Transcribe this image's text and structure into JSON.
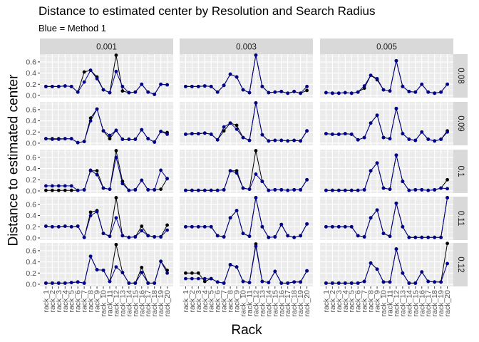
{
  "chart_data": {
    "type": "line",
    "title": "Distance to estimated center by Resolution and Search Radius",
    "subtitle": "Blue = Method 1",
    "xlabel": "Rack",
    "ylabel": "Distance to estimated center",
    "ylim": [
      0,
      0.7
    ],
    "y_ticks": [
      "0.0",
      "0.2",
      "0.4",
      "0.6"
    ],
    "categories": [
      "rack_1",
      "rack_2",
      "rack_3",
      "rack_4",
      "rack_5",
      "rack_6",
      "rack_7",
      "rack_8",
      "rack_9",
      "rack_10",
      "rack_11",
      "rack_12",
      "rack_13",
      "rack_14",
      "rack_15",
      "rack_16",
      "rack_17",
      "rack_18",
      "rack_19",
      "rack_20"
    ],
    "column_facets": [
      "0.001",
      "0.003",
      "0.005"
    ],
    "row_facets": [
      "0.08",
      "0.09",
      "0.1",
      "0.11",
      "0.12"
    ],
    "colors": {
      "black_series": "#000000",
      "blue_series": "#00008B",
      "panel_bg": "#EBEBEB",
      "strip_bg": "#D9D9D9",
      "grid": "#FFFFFF"
    },
    "panels": [
      [
        {
          "black": [
            0.16,
            0.16,
            0.16,
            0.17,
            0.16,
            0.06,
            0.42,
            0.45,
            0.33,
            0.1,
            0.05,
            0.72,
            0.08,
            0.05,
            0.06,
            0.2,
            0.06,
            0.02,
            0.2,
            0.19
          ],
          "blue": [
            0.16,
            0.16,
            0.16,
            0.17,
            0.16,
            0.06,
            0.24,
            0.45,
            0.3,
            0.1,
            0.05,
            0.43,
            0.16,
            0.05,
            0.06,
            0.2,
            0.06,
            0.02,
            0.2,
            0.19
          ]
        },
        {
          "black": [
            0.16,
            0.16,
            0.16,
            0.17,
            0.16,
            0.06,
            0.18,
            0.38,
            0.33,
            0.1,
            0.05,
            0.72,
            0.16,
            0.05,
            0.06,
            0.07,
            0.04,
            0.07,
            0.04,
            0.09
          ],
          "blue": [
            0.16,
            0.16,
            0.16,
            0.17,
            0.16,
            0.06,
            0.18,
            0.38,
            0.33,
            0.1,
            0.05,
            0.72,
            0.16,
            0.05,
            0.06,
            0.07,
            0.04,
            0.07,
            0.04,
            0.16
          ]
        },
        {
          "black": [
            0.05,
            0.04,
            0.04,
            0.05,
            0.04,
            0.06,
            0.13,
            0.36,
            0.28,
            0.1,
            0.08,
            0.62,
            0.16,
            0.07,
            0.06,
            0.2,
            0.06,
            0.04,
            0.06,
            0.2
          ],
          "blue": [
            0.05,
            0.04,
            0.04,
            0.05,
            0.04,
            0.06,
            0.17,
            0.36,
            0.3,
            0.1,
            0.08,
            0.62,
            0.16,
            0.07,
            0.06,
            0.2,
            0.06,
            0.04,
            0.06,
            0.2
          ]
        }
      ],
      [
        {
          "black": [
            0.08,
            0.08,
            0.08,
            0.08,
            0.08,
            0.01,
            0.03,
            0.45,
            0.61,
            0.22,
            0.08,
            0.23,
            0.07,
            0.07,
            0.07,
            0.24,
            0.08,
            0.02,
            0.21,
            0.19
          ],
          "blue": [
            0.08,
            0.07,
            0.07,
            0.08,
            0.08,
            0.01,
            0.03,
            0.4,
            0.61,
            0.22,
            0.14,
            0.23,
            0.07,
            0.07,
            0.07,
            0.24,
            0.08,
            0.02,
            0.21,
            0.16
          ]
        },
        {
          "black": [
            0.16,
            0.17,
            0.17,
            0.18,
            0.16,
            0.06,
            0.22,
            0.36,
            0.32,
            0.1,
            0.05,
            0.72,
            0.15,
            0.04,
            0.05,
            0.05,
            0.04,
            0.05,
            0.04,
            0.22
          ],
          "blue": [
            0.16,
            0.17,
            0.17,
            0.18,
            0.16,
            0.06,
            0.29,
            0.36,
            0.25,
            0.1,
            0.05,
            0.72,
            0.15,
            0.04,
            0.05,
            0.05,
            0.04,
            0.05,
            0.04,
            0.22
          ]
        },
        {
          "black": [
            0.17,
            0.16,
            0.16,
            0.17,
            0.16,
            0.06,
            0.1,
            0.36,
            0.5,
            0.1,
            0.08,
            0.62,
            0.17,
            0.07,
            0.05,
            0.2,
            0.07,
            0.04,
            0.07,
            0.22
          ],
          "blue": [
            0.17,
            0.16,
            0.16,
            0.17,
            0.16,
            0.06,
            0.1,
            0.36,
            0.5,
            0.1,
            0.08,
            0.62,
            0.17,
            0.07,
            0.05,
            0.2,
            0.07,
            0.04,
            0.07,
            0.2
          ]
        }
      ],
      [
        {
          "black": [
            0.01,
            0.01,
            0.01,
            0.01,
            0.01,
            0.01,
            0.02,
            0.36,
            0.36,
            0.05,
            0.03,
            0.72,
            0.17,
            0.01,
            0.02,
            0.19,
            0.02,
            0.02,
            0.03,
            0.22
          ],
          "blue": [
            0.09,
            0.09,
            0.09,
            0.09,
            0.09,
            0.01,
            0.02,
            0.37,
            0.29,
            0.05,
            0.03,
            0.6,
            0.13,
            0.01,
            0.02,
            0.19,
            0.02,
            0.02,
            0.37,
            0.22
          ]
        },
        {
          "black": [
            0.01,
            0.01,
            0.01,
            0.01,
            0.01,
            0.01,
            0.02,
            0.36,
            0.36,
            0.05,
            0.03,
            0.72,
            0.17,
            0.01,
            0.02,
            0.02,
            0.01,
            0.02,
            0.02,
            0.2
          ],
          "blue": [
            0.01,
            0.01,
            0.01,
            0.01,
            0.01,
            0.01,
            0.02,
            0.36,
            0.32,
            0.05,
            0.03,
            0.3,
            0.17,
            0.01,
            0.02,
            0.02,
            0.01,
            0.02,
            0.02,
            0.2
          ]
        },
        {
          "black": [
            0.01,
            0.01,
            0.01,
            0.01,
            0.01,
            0.01,
            0.02,
            0.36,
            0.5,
            0.05,
            0.03,
            0.64,
            0.17,
            0.01,
            0.02,
            0.02,
            0.01,
            0.02,
            0.05,
            0.2
          ],
          "blue": [
            0.01,
            0.01,
            0.01,
            0.01,
            0.01,
            0.01,
            0.02,
            0.36,
            0.5,
            0.05,
            0.03,
            0.64,
            0.17,
            0.01,
            0.02,
            0.02,
            0.01,
            0.02,
            0.05,
            0.04
          ]
        }
      ],
      [
        {
          "black": [
            0.21,
            0.2,
            0.2,
            0.21,
            0.2,
            0.21,
            0.01,
            0.46,
            0.49,
            0.08,
            0.03,
            0.72,
            0.04,
            0.01,
            0.02,
            0.21,
            0.04,
            0.02,
            0.02,
            0.23
          ],
          "blue": [
            0.21,
            0.2,
            0.2,
            0.21,
            0.2,
            0.21,
            0.01,
            0.4,
            0.47,
            0.08,
            0.03,
            0.36,
            0.04,
            0.01,
            0.02,
            0.13,
            0.04,
            0.02,
            0.02,
            0.14
          ]
        },
        {
          "black": [
            0.2,
            0.2,
            0.2,
            0.2,
            0.2,
            0.04,
            0.02,
            0.36,
            0.49,
            0.08,
            0.03,
            0.72,
            0.2,
            0.01,
            0.02,
            0.24,
            0.04,
            0.01,
            0.04,
            0.25
          ],
          "blue": [
            0.2,
            0.2,
            0.2,
            0.2,
            0.2,
            0.04,
            0.02,
            0.36,
            0.49,
            0.08,
            0.03,
            0.72,
            0.2,
            0.01,
            0.02,
            0.24,
            0.04,
            0.01,
            0.04,
            0.25
          ]
        },
        {
          "black": [
            0.2,
            0.2,
            0.2,
            0.2,
            0.2,
            0.04,
            0.02,
            0.36,
            0.5,
            0.08,
            0.03,
            0.62,
            0.2,
            0.01,
            0.01,
            0.01,
            0.01,
            0.01,
            0.01,
            0.72
          ],
          "blue": [
            0.2,
            0.2,
            0.2,
            0.2,
            0.2,
            0.04,
            0.02,
            0.36,
            0.5,
            0.08,
            0.03,
            0.62,
            0.2,
            0.01,
            0.01,
            0.01,
            0.01,
            0.01,
            0.01,
            0.72
          ]
        }
      ],
      [
        {
          "black": [
            0.02,
            0.02,
            0.02,
            0.02,
            0.03,
            0.04,
            0.02,
            0.5,
            0.26,
            0.25,
            0.05,
            0.71,
            0.21,
            0.02,
            0.02,
            0.3,
            0.02,
            0.02,
            0.41,
            0.25
          ],
          "blue": [
            0.02,
            0.02,
            0.02,
            0.02,
            0.03,
            0.04,
            0.02,
            0.5,
            0.26,
            0.25,
            0.05,
            0.31,
            0.21,
            0.02,
            0.02,
            0.21,
            0.02,
            0.02,
            0.41,
            0.2
          ]
        },
        {
          "black": [
            0.2,
            0.2,
            0.2,
            0.05,
            0.1,
            0.04,
            0.02,
            0.35,
            0.31,
            0.05,
            0.03,
            0.72,
            0.05,
            0.03,
            0.23,
            0.02,
            0.02,
            0.04,
            0.04,
            0.24
          ],
          "blue": [
            0.1,
            0.1,
            0.1,
            0.1,
            0.1,
            0.04,
            0.02,
            0.35,
            0.31,
            0.05,
            0.03,
            0.68,
            0.05,
            0.03,
            0.23,
            0.02,
            0.02,
            0.04,
            0.04,
            0.24
          ]
        },
        {
          "black": [
            0.02,
            0.02,
            0.02,
            0.02,
            0.02,
            0.02,
            0.05,
            0.38,
            0.27,
            0.04,
            0.04,
            0.63,
            0.2,
            0.02,
            0.02,
            0.22,
            0.05,
            0.04,
            0.04,
            0.73
          ],
          "blue": [
            0.02,
            0.02,
            0.02,
            0.02,
            0.02,
            0.02,
            0.05,
            0.38,
            0.27,
            0.04,
            0.04,
            0.63,
            0.2,
            0.02,
            0.02,
            0.22,
            0.05,
            0.04,
            0.04,
            0.37
          ]
        }
      ]
    ]
  }
}
